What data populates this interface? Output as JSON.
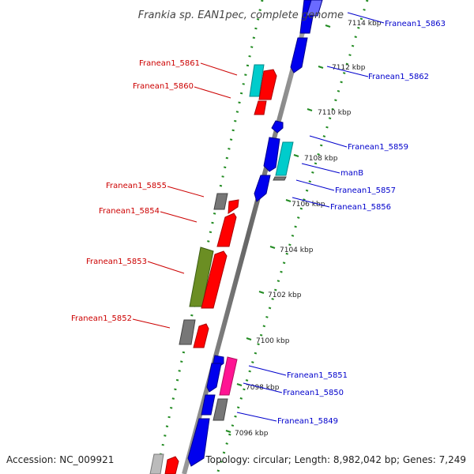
{
  "map": {
    "title": "Frankia sp. EAN1pec, complete genome",
    "accession_text": "Accession: NC_009921",
    "topology_text": "Topology: circular; Length: 8,982,042 bp; Genes: 7,249"
  },
  "kbp_ticks": [
    "7114 kbp",
    "7112 kbp",
    "7110 kbp",
    "7108 kbp",
    "7106 kbp",
    "7104 kbp",
    "7102 kbp",
    "7100 kbp",
    "7098 kbp",
    "7096 kbp"
  ],
  "left_labels": [
    "Franean1_5861",
    "Franean1_5860",
    "Franean1_5855",
    "Franean1_5854",
    "Franean1_5853",
    "Franean1_5852"
  ],
  "right_labels": [
    "Franean1_5863",
    "Franean1_5862",
    "Franean1_5859",
    "manB",
    "Franean1_5857",
    "Franean1_5856",
    "Franean1_5851",
    "Franean1_5850",
    "Franean1_5849"
  ],
  "colors": {
    "red": "#ff0000",
    "blue": "#0000ee",
    "cyan": "#00cccc",
    "gray": "#777777",
    "olive": "#6b8e23",
    "magenta": "#ff1493",
    "dots": "#228b22",
    "label_red": "#cc0000",
    "label_blue": "#0000cc"
  }
}
